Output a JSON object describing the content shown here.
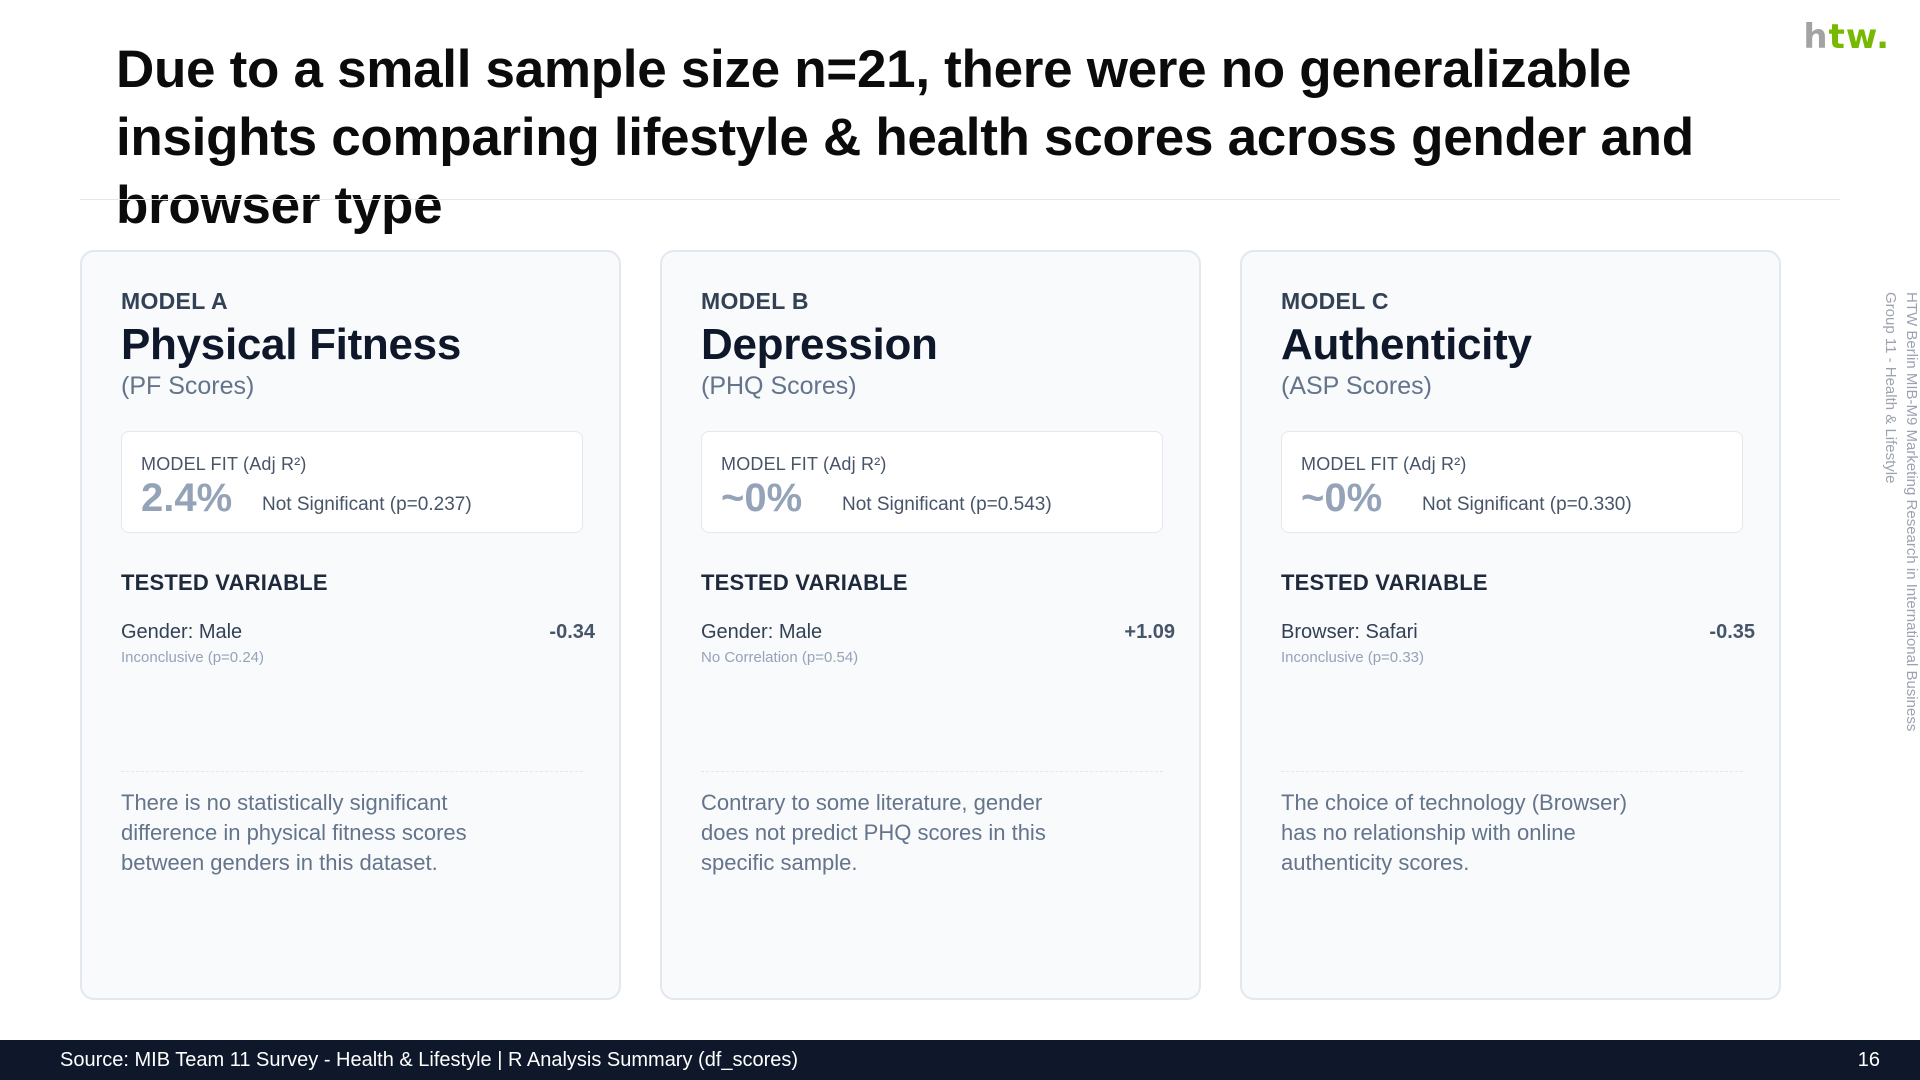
{
  "logo": {
    "h": "h",
    "tw": "tw",
    "dot": "."
  },
  "title": "Due to a small sample size n=21, there were no generalizable insights comparing lifestyle & health scores across gender and browser type",
  "sidenote": {
    "line1": "HTW Berlin MIB-M9 Marketing Research in International Business",
    "line2": "Group 11 - Health & Lifestyle"
  },
  "cards": [
    {
      "model_label": "MODEL A",
      "model_name": "Physical Fitness",
      "model_sub": "(PF Scores)",
      "fit_label": "MODEL FIT (Adj R²)",
      "fit_value": "2.4%",
      "fit_sig": "Not Significant (p=0.237)",
      "tested_head": "TESTED VARIABLE",
      "var_name": "Gender: Male",
      "var_coef": "-0.34",
      "var_note": "Inconclusive (p=0.24)",
      "summary": "There is no statistically significant difference in physical fitness scores between genders in this dataset."
    },
    {
      "model_label": "MODEL B",
      "model_name": "Depression",
      "model_sub": "(PHQ Scores)",
      "fit_label": "MODEL FIT (Adj R²)",
      "fit_value": "~0%",
      "fit_sig": "Not Significant (p=0.543)",
      "tested_head": "TESTED VARIABLE",
      "var_name": "Gender: Male",
      "var_coef": "+1.09",
      "var_note": "No Correlation (p=0.54)",
      "summary": "Contrary to some literature, gender does not predict PHQ scores in this specific sample."
    },
    {
      "model_label": "MODEL C",
      "model_name": "Authenticity",
      "model_sub": "(ASP Scores)",
      "fit_label": "MODEL FIT (Adj R²)",
      "fit_value": "~0%",
      "fit_sig": "Not Significant (p=0.330)",
      "tested_head": "TESTED VARIABLE",
      "var_name": "Browser: Safari",
      "var_coef": "-0.35",
      "var_note": "Inconclusive (p=0.33)",
      "summary": "The choice of technology (Browser) has no relationship with online authenticity scores."
    }
  ],
  "footer": {
    "source": "Source: MIB Team 11 Survey - Health & Lifestyle | R Analysis Summary (df_scores)",
    "page": "16"
  }
}
